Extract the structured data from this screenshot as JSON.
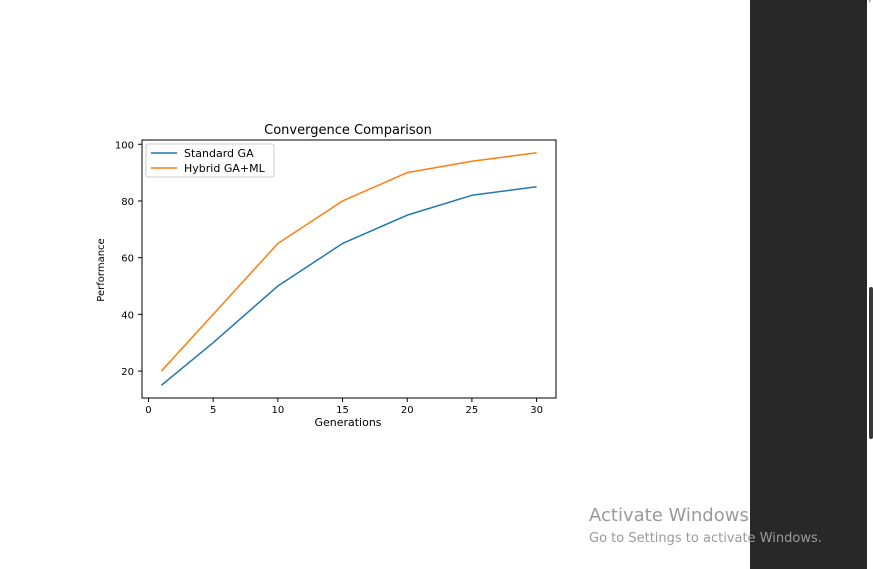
{
  "chart_data": {
    "type": "line",
    "title": "Convergence Comparison",
    "xlabel": "Generations",
    "ylabel": "Performance",
    "x": [
      1,
      5,
      10,
      15,
      20,
      25,
      30
    ],
    "xlim": [
      -0.5,
      31.5
    ],
    "ylim": [
      10.5,
      101.5
    ],
    "xticks": [
      0,
      5,
      10,
      15,
      20,
      25,
      30
    ],
    "yticks": [
      20,
      40,
      60,
      80,
      100
    ],
    "grid": false,
    "legend_position": "upper-left",
    "series": [
      {
        "name": "Standard GA",
        "color": "#1f77b4",
        "values": [
          15,
          30,
          50,
          65,
          75,
          82,
          85
        ]
      },
      {
        "name": "Hybrid GA+ML",
        "color": "#ff7f0e",
        "values": [
          20,
          40,
          65,
          80,
          90,
          94,
          97
        ]
      }
    ]
  },
  "watermark": {
    "title": "Activate Windows",
    "subtitle": "Go to Settings to activate Windows."
  }
}
